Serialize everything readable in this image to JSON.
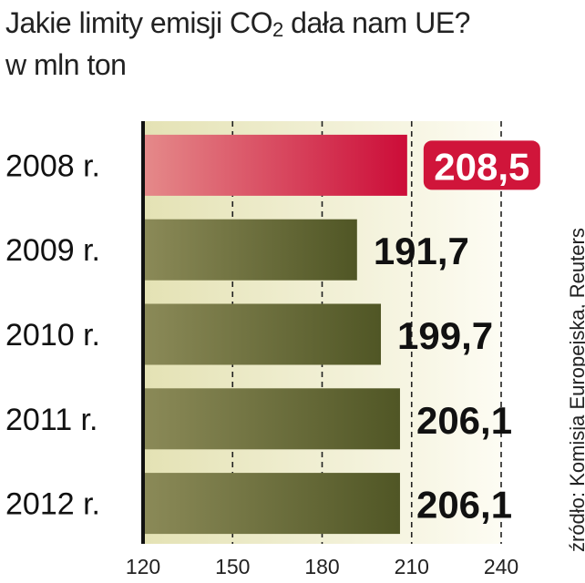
{
  "title": {
    "line1_before": "Jakie limity emisji CO",
    "line1_sub": "2",
    "line1_after": " dała nam UE?",
    "line2": "w mln ton"
  },
  "source": "źródło: Komisja Europejska, Reuters",
  "colors": {
    "highlight_bar": "#d01736",
    "bar": "#5a5f2c",
    "highlight_label_bg": "#d0153a",
    "plot_background": "#f6f4df"
  },
  "chart_data": {
    "type": "bar",
    "orientation": "horizontal",
    "categories": [
      "2008 r.",
      "2009 r.",
      "2010 r.",
      "2011 r.",
      "2012 r."
    ],
    "values": [
      208.5,
      191.7,
      199.7,
      206.1,
      206.1
    ],
    "value_labels": [
      "208,5",
      "191,7",
      "199,7",
      "206,1",
      "206,1"
    ],
    "highlight_index": 0,
    "xlim": [
      120,
      240
    ],
    "xticks": [
      120,
      150,
      180,
      210,
      240
    ],
    "grid": "vertical dashed"
  }
}
